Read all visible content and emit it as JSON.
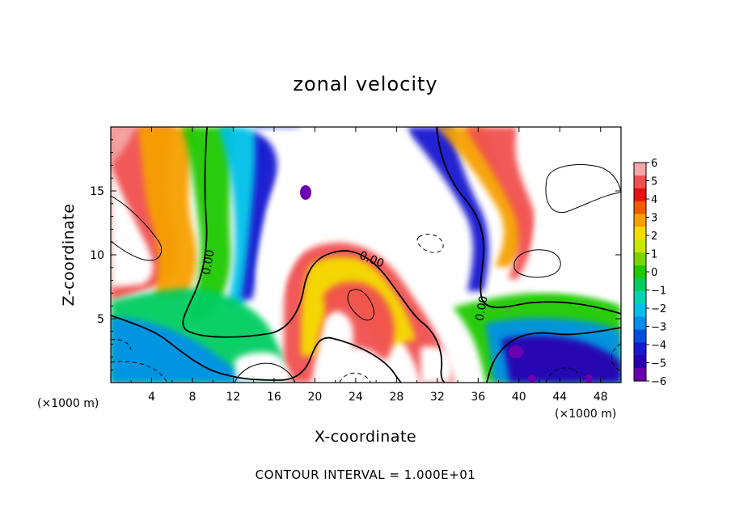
{
  "chart_data": {
    "type": "heatmap",
    "title": "zonal velocity",
    "xlabel": "X-coordinate",
    "ylabel": "Z-coordinate",
    "x_unit_label_left": "(×1000 m)",
    "x_unit_label_right": "(×1000 m)",
    "xlim": [
      0,
      50
    ],
    "ylim": [
      0,
      20
    ],
    "x_ticks": [
      4,
      8,
      12,
      16,
      20,
      24,
      28,
      32,
      36,
      40,
      44,
      48
    ],
    "y_ticks": [
      5,
      10,
      15
    ],
    "colorbar": {
      "ticks": [
        6,
        5,
        4,
        3,
        2,
        1,
        0,
        -1,
        -2,
        -3,
        -4,
        -5,
        -6
      ],
      "vmin": -6,
      "vmax": 6,
      "colors": [
        "#f4a7a7",
        "#f05050",
        "#e81010",
        "#f05a00",
        "#f5a000",
        "#f4dc00",
        "#c8e600",
        "#7ad400",
        "#1fc800",
        "#00cc60",
        "#00d4b4",
        "#00c0e8",
        "#0090e8",
        "#0050e0",
        "#1818d0",
        "#2800b0",
        "#6a00b0"
      ]
    },
    "contour_labels": [
      "0.00",
      "0.00",
      "0.00"
    ],
    "contour_interval_text": "CONTOUR INTERVAL = 1.000E+01",
    "grid": false,
    "colormap": "rainbow"
  }
}
